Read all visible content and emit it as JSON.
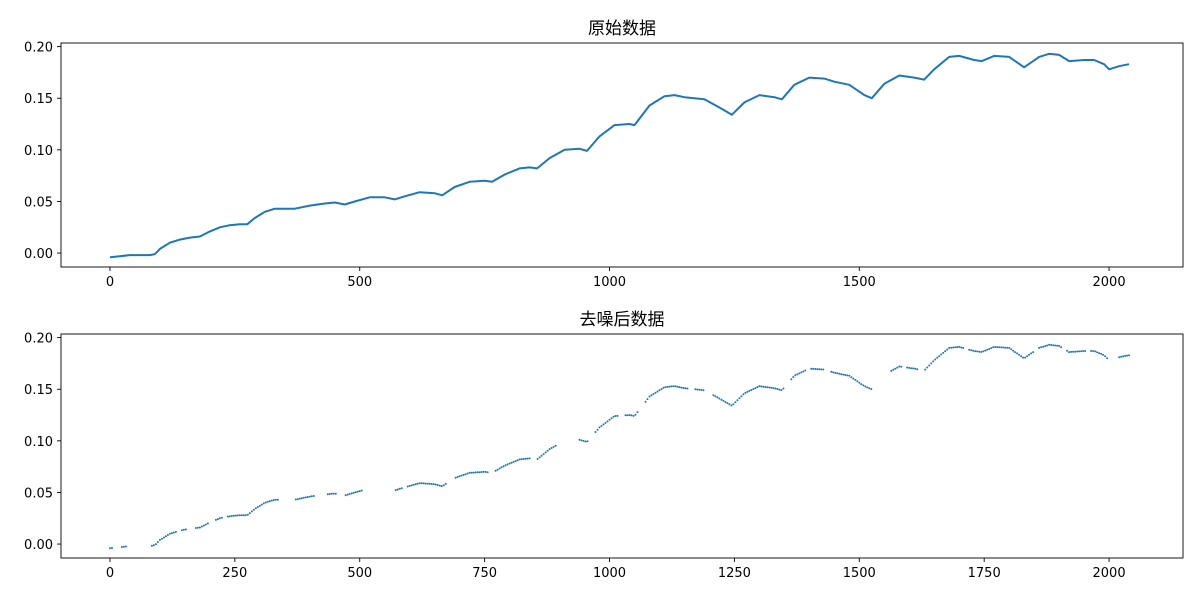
{
  "chart_data": [
    {
      "type": "line",
      "title": "原始数据",
      "xlabel": "",
      "ylabel": "",
      "xlim": [
        -98,
        2148
      ],
      "ylim": [
        -0.0135,
        0.2035
      ],
      "xticks": [
        0,
        500,
        1000,
        1500,
        2000
      ],
      "yticks": [
        0.0,
        0.05,
        0.1,
        0.15,
        0.2
      ],
      "xtick_labels": [
        "0",
        "500",
        "1000",
        "1500",
        "2000"
      ],
      "ytick_labels": [
        "0.00",
        "0.05",
        "0.10",
        "0.15",
        "0.20"
      ],
      "grid": false,
      "series": [
        {
          "color": "#1f77b4",
          "x": [
            0,
            20,
            40,
            60,
            80,
            90,
            100,
            120,
            140,
            160,
            180,
            200,
            220,
            240,
            260,
            275,
            290,
            310,
            330,
            350,
            370,
            400,
            430,
            450,
            470,
            490,
            520,
            550,
            570,
            590,
            620,
            650,
            665,
            690,
            720,
            750,
            765,
            790,
            820,
            840,
            855,
            880,
            910,
            940,
            955,
            980,
            1010,
            1040,
            1050,
            1080,
            1110,
            1130,
            1150,
            1190,
            1220,
            1245,
            1270,
            1300,
            1330,
            1345,
            1370,
            1400,
            1430,
            1450,
            1480,
            1510,
            1525,
            1550,
            1580,
            1610,
            1630,
            1650,
            1680,
            1700,
            1730,
            1745,
            1770,
            1800,
            1815,
            1830,
            1860,
            1880,
            1900,
            1920,
            1950,
            1970,
            1990,
            2000,
            2020,
            2040
          ],
          "y": [
            -0.004,
            -0.003,
            -0.002,
            -0.002,
            -0.002,
            -0.001,
            0.004,
            0.01,
            0.013,
            0.015,
            0.016,
            0.021,
            0.025,
            0.027,
            0.028,
            0.028,
            0.034,
            0.04,
            0.043,
            0.043,
            0.043,
            0.046,
            0.048,
            0.049,
            0.047,
            0.05,
            0.054,
            0.054,
            0.052,
            0.055,
            0.059,
            0.058,
            0.056,
            0.064,
            0.069,
            0.07,
            0.069,
            0.076,
            0.082,
            0.083,
            0.082,
            0.092,
            0.1,
            0.101,
            0.099,
            0.113,
            0.124,
            0.125,
            0.124,
            0.143,
            0.152,
            0.153,
            0.151,
            0.149,
            0.141,
            0.134,
            0.146,
            0.153,
            0.151,
            0.149,
            0.163,
            0.17,
            0.169,
            0.166,
            0.163,
            0.153,
            0.15,
            0.164,
            0.172,
            0.17,
            0.168,
            0.178,
            0.19,
            0.191,
            0.187,
            0.186,
            0.191,
            0.19,
            0.185,
            0.18,
            0.19,
            0.193,
            0.192,
            0.186,
            0.187,
            0.187,
            0.183,
            0.178,
            0.181,
            0.183
          ]
        }
      ]
    },
    {
      "type": "scatter",
      "title": "去噪后数据",
      "xlabel": "",
      "ylabel": "",
      "xlim": [
        -98,
        2148
      ],
      "ylim": [
        -0.0135,
        0.2035
      ],
      "xticks": [
        0,
        250,
        500,
        750,
        1000,
        1250,
        1500,
        1750,
        2000
      ],
      "yticks": [
        0.0,
        0.05,
        0.1,
        0.15,
        0.2
      ],
      "xtick_labels": [
        "0",
        "250",
        "500",
        "750",
        "1000",
        "1250",
        "1500",
        "1750",
        "2000"
      ],
      "ytick_labels": [
        "0.00",
        "0.05",
        "0.10",
        "0.15",
        "0.20"
      ],
      "grid": false,
      "gaps": [
        [
          8,
          20
        ],
        [
          33,
          82
        ],
        [
          133,
          143
        ],
        [
          154,
          170
        ],
        [
          199,
          208
        ],
        [
          226,
          232
        ],
        [
          338,
          368
        ],
        [
          410,
          432
        ],
        [
          454,
          468
        ],
        [
          507,
          570
        ],
        [
          585,
          592
        ],
        [
          675,
          688
        ],
        [
          758,
          770
        ],
        [
          843,
          853
        ],
        [
          895,
          938
        ],
        [
          957,
          968
        ],
        [
          1020,
          1030
        ],
        [
          1060,
          1068
        ],
        [
          1160,
          1170
        ],
        [
          1192,
          1205
        ],
        [
          1350,
          1360
        ],
        [
          1395,
          1402
        ],
        [
          1432,
          1440
        ],
        [
          1528,
          1560
        ],
        [
          1585,
          1592
        ],
        [
          1620,
          1630
        ],
        [
          1710,
          1718
        ],
        [
          1850,
          1858
        ],
        [
          1905,
          1912
        ],
        [
          1955,
          1962
        ],
        [
          2000,
          2016
        ]
      ],
      "series": [
        {
          "color": "#1f77b4",
          "x": [
            0,
            20,
            40,
            60,
            80,
            90,
            100,
            120,
            140,
            160,
            180,
            200,
            220,
            240,
            260,
            275,
            290,
            310,
            330,
            350,
            370,
            400,
            430,
            450,
            470,
            490,
            520,
            550,
            570,
            590,
            620,
            650,
            665,
            690,
            720,
            750,
            765,
            790,
            820,
            840,
            855,
            880,
            910,
            940,
            955,
            980,
            1010,
            1040,
            1050,
            1080,
            1110,
            1130,
            1150,
            1190,
            1220,
            1245,
            1270,
            1300,
            1330,
            1345,
            1370,
            1400,
            1430,
            1450,
            1480,
            1510,
            1525,
            1550,
            1580,
            1610,
            1630,
            1650,
            1680,
            1700,
            1730,
            1745,
            1770,
            1800,
            1815,
            1830,
            1860,
            1880,
            1900,
            1920,
            1950,
            1970,
            1990,
            2000,
            2020,
            2040
          ],
          "y": [
            -0.004,
            -0.003,
            -0.002,
            -0.002,
            -0.002,
            -0.001,
            0.004,
            0.01,
            0.013,
            0.015,
            0.016,
            0.021,
            0.025,
            0.027,
            0.028,
            0.028,
            0.034,
            0.04,
            0.043,
            0.043,
            0.043,
            0.046,
            0.048,
            0.049,
            0.047,
            0.05,
            0.054,
            0.054,
            0.052,
            0.055,
            0.059,
            0.058,
            0.056,
            0.064,
            0.069,
            0.07,
            0.069,
            0.076,
            0.082,
            0.083,
            0.082,
            0.092,
            0.1,
            0.101,
            0.099,
            0.113,
            0.124,
            0.125,
            0.124,
            0.143,
            0.152,
            0.153,
            0.151,
            0.149,
            0.141,
            0.134,
            0.146,
            0.153,
            0.151,
            0.149,
            0.163,
            0.17,
            0.169,
            0.166,
            0.163,
            0.153,
            0.15,
            0.164,
            0.172,
            0.17,
            0.168,
            0.178,
            0.19,
            0.191,
            0.187,
            0.186,
            0.191,
            0.19,
            0.185,
            0.18,
            0.19,
            0.193,
            0.192,
            0.186,
            0.187,
            0.187,
            0.183,
            0.178,
            0.181,
            0.183
          ]
        }
      ]
    }
  ]
}
